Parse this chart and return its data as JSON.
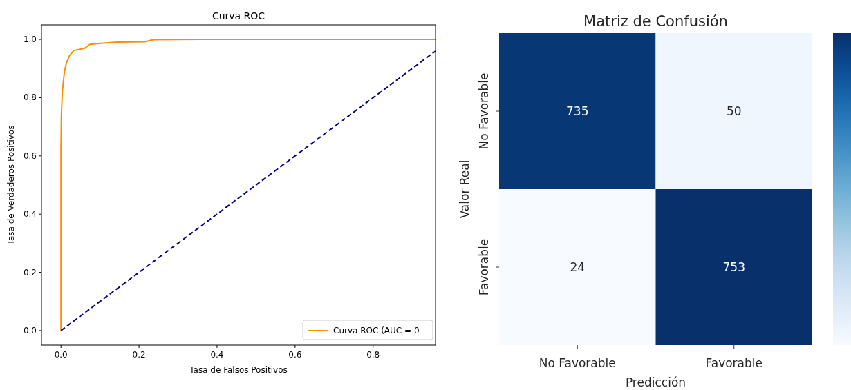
{
  "chart_data": [
    {
      "type": "line",
      "title": "Curva ROC",
      "xlabel": "Tasa de Falsos Positivos",
      "ylabel": "Tasa de Verdaderos Positivos",
      "xlim": [
        -0.05,
        0.96
      ],
      "ylim": [
        -0.05,
        1.05
      ],
      "xticks": [
        {
          "value": 0,
          "label": "0.0"
        },
        {
          "value": 0.2,
          "label": "0.2"
        },
        {
          "value": 0.4,
          "label": "0.4"
        },
        {
          "value": 0.6,
          "label": "0.6"
        },
        {
          "value": 0.8,
          "label": "0.8"
        }
      ],
      "yticks": [
        {
          "value": 0,
          "label": "0.0"
        },
        {
          "value": 0.2,
          "label": "0.2"
        },
        {
          "value": 0.4,
          "label": "0.4"
        },
        {
          "value": 0.6,
          "label": "0.6"
        },
        {
          "value": 0.8,
          "label": "0.8"
        },
        {
          "value": 1,
          "label": "1.0"
        }
      ],
      "series": [
        {
          "name": "Curva ROC (AUC = 0",
          "color": "#ff8c00",
          "line_style": "solid",
          "x": [
            0,
            0,
            0.001,
            0.0035,
            0.0065,
            0.009,
            0.014,
            0.022,
            0.033,
            0.061,
            0.074,
            0.097,
            0.144,
            0.214,
            0.237,
            0.36,
            0.96
          ],
          "values": [
            0,
            0.62,
            0.74,
            0.82,
            0.86,
            0.89,
            0.92,
            0.945,
            0.962,
            0.97,
            0.983,
            0.986,
            0.991,
            0.992,
            0.999,
            1.0,
            1.0
          ]
        },
        {
          "color": "#000080",
          "line_style": "dashed",
          "x": [
            0,
            0.96
          ],
          "values": [
            0,
            0.96
          ]
        }
      ],
      "legend": "bottom right",
      "grid": false
    },
    {
      "type": "heatmap",
      "title": "Matriz de Confusión",
      "xlabel": "Predicción",
      "ylabel": "Valor Real",
      "categories": [
        "No Favorable",
        "Favorable"
      ],
      "y_categories": [
        "No Favorable",
        "Favorable"
      ],
      "cells": [
        [
          735,
          50
        ],
        [
          24,
          753
        ]
      ],
      "data_labels": true
    }
  ]
}
